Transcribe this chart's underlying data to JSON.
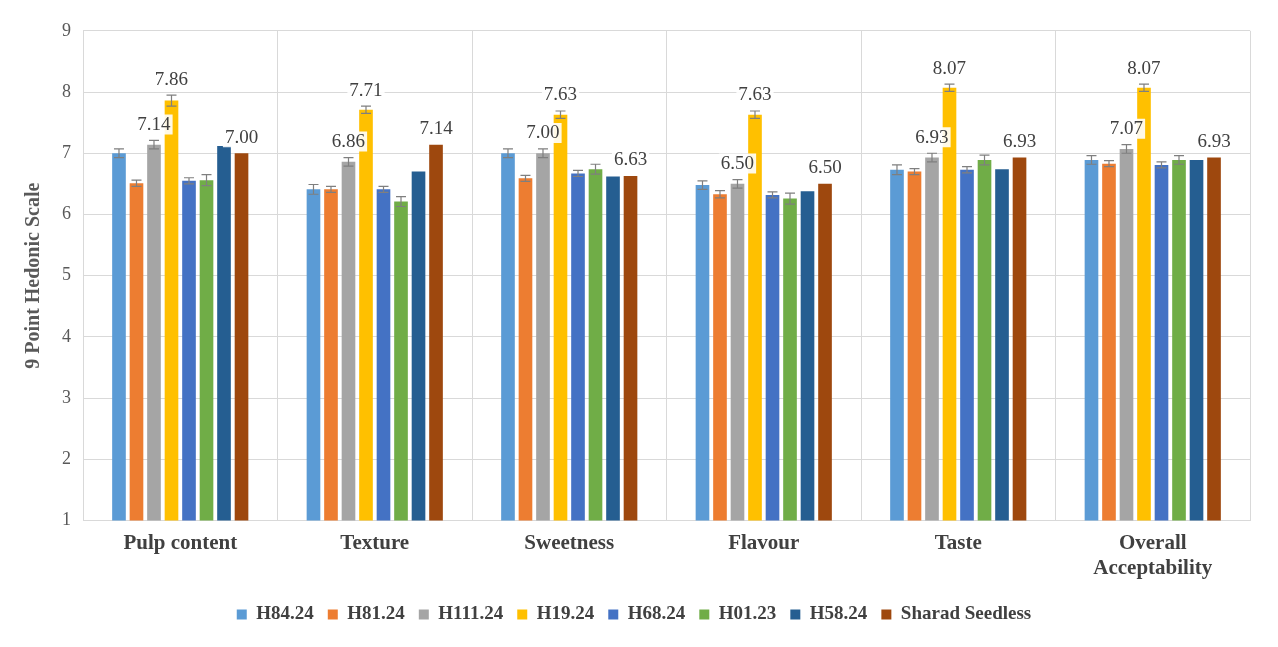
{
  "chart_data": {
    "type": "bar",
    "ylabel": "9 Point Hedonic Scale",
    "categories": [
      "Pulp content",
      "Texture",
      "Sweetness",
      "Flavour",
      "Taste",
      "Overall Acceptability"
    ],
    "ylim": [
      1,
      9
    ],
    "yticks": [
      1,
      2,
      3,
      4,
      5,
      6,
      7,
      8,
      9
    ],
    "grid": true,
    "legend": "bottom",
    "series": [
      {
        "name": "H84.24",
        "color": "#5b9bd5",
        "values": [
          7.0,
          6.41,
          7.0,
          6.48,
          6.73,
          6.89
        ],
        "errors": [
          0.07,
          0.08,
          0.07,
          0.07,
          0.08,
          0.07
        ]
      },
      {
        "name": "H81.24",
        "color": "#ed7d31",
        "values": [
          6.51,
          6.41,
          6.59,
          6.33,
          6.7,
          6.83
        ],
        "errors": [
          0.05,
          0.05,
          0.05,
          0.06,
          0.05,
          0.05
        ]
      },
      {
        "name": "H111.24",
        "color": "#a5a5a5",
        "values": [
          7.14,
          6.86,
          7.0,
          6.5,
          6.93,
          7.07
        ],
        "errors": [
          0.07,
          0.07,
          0.07,
          0.07,
          0.07,
          0.07
        ],
        "value_labels": [
          "7.14",
          "6.86",
          "7.00",
          "6.50",
          "6.93",
          "7.07"
        ]
      },
      {
        "name": "H19.24",
        "color": "#ffc000",
        "values": [
          7.86,
          7.71,
          7.63,
          7.63,
          8.07,
          8.07
        ],
        "errors": [
          0.09,
          0.06,
          0.06,
          0.06,
          0.06,
          0.06
        ],
        "value_labels": [
          "7.86",
          "7.71",
          "7.63",
          "7.63",
          "8.07",
          "8.07"
        ]
      },
      {
        "name": "H68.24",
        "color": "#4472c4",
        "values": [
          6.55,
          6.41,
          6.67,
          6.32,
          6.73,
          6.81
        ],
        "errors": [
          0.05,
          0.05,
          0.05,
          0.05,
          0.05,
          0.05
        ]
      },
      {
        "name": "H01.23",
        "color": "#70ad47",
        "values": [
          6.56,
          6.21,
          6.74,
          6.26,
          6.89,
          6.89
        ],
        "errors": [
          0.09,
          0.08,
          0.08,
          0.09,
          0.08,
          0.07
        ]
      },
      {
        "name": "H58.24",
        "color": "#255e91",
        "values": [
          7.12,
          6.7,
          6.62,
          6.38,
          6.74,
          6.89
        ]
      },
      {
        "name": "Sharad Seedless",
        "color": "#9e480e",
        "values": [
          7.0,
          7.14,
          6.63,
          6.5,
          6.93,
          6.93
        ],
        "value_labels": [
          "7.00",
          "7.14",
          "6.63",
          "6.50",
          "6.93",
          "6.93"
        ]
      }
    ]
  }
}
